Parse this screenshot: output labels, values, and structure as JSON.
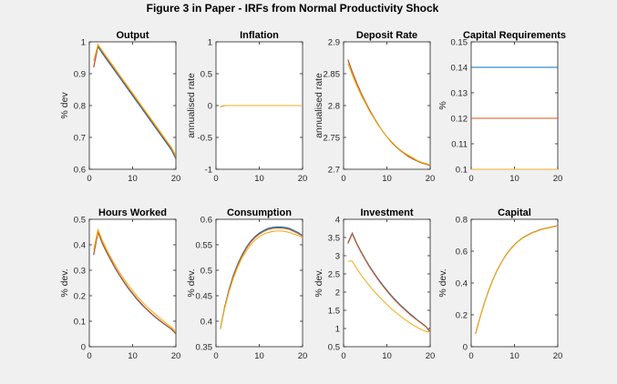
{
  "figure": {
    "title": "Figure 3 in Paper - IRFs from Normal Productivity Shock"
  },
  "colors": {
    "series1": "#0072bd",
    "series2": "#d95319",
    "series3": "#edb120",
    "axis": "#262626"
  },
  "chart_data": [
    {
      "type": "line",
      "title": "Output",
      "ylabel": "% dev",
      "xlim": [
        0,
        20
      ],
      "xticks": [
        0,
        10,
        20
      ],
      "ylim": [
        0.6,
        1.0
      ],
      "yticks": [
        0.6,
        0.7,
        0.8,
        0.9,
        1.0
      ],
      "yticklabels": [
        "0.6",
        "0.7",
        "0.8",
        "0.9",
        "1"
      ],
      "x": [
        1,
        2,
        3,
        4,
        5,
        6,
        7,
        8,
        9,
        10,
        11,
        12,
        13,
        14,
        15,
        16,
        17,
        18,
        19,
        20
      ],
      "series": [
        {
          "values": [
            0.92,
            0.985,
            0.964,
            0.945,
            0.926,
            0.907,
            0.888,
            0.869,
            0.85,
            0.831,
            0.812,
            0.793,
            0.774,
            0.755,
            0.736,
            0.717,
            0.698,
            0.679,
            0.66,
            0.632
          ]
        },
        {
          "values": [
            0.92,
            0.99,
            0.968,
            0.949,
            0.93,
            0.911,
            0.892,
            0.873,
            0.854,
            0.835,
            0.816,
            0.797,
            0.778,
            0.759,
            0.74,
            0.721,
            0.702,
            0.683,
            0.664,
            0.636
          ]
        },
        {
          "values": [
            0.94,
            0.992,
            0.972,
            0.953,
            0.934,
            0.915,
            0.896,
            0.877,
            0.858,
            0.839,
            0.82,
            0.801,
            0.782,
            0.763,
            0.744,
            0.725,
            0.706,
            0.687,
            0.668,
            0.642
          ]
        }
      ]
    },
    {
      "type": "line",
      "title": "Inflation",
      "ylabel": "annualised rate",
      "xlim": [
        0,
        20
      ],
      "xticks": [
        0,
        10,
        20
      ],
      "ylim": [
        -1,
        1
      ],
      "yticks": [
        -1,
        -0.5,
        0,
        0.5,
        1
      ],
      "yticklabels": [
        "-1",
        "-0.5",
        "0",
        "0.5",
        "1"
      ],
      "x": [
        1,
        2,
        3,
        4,
        5,
        6,
        7,
        8,
        9,
        10,
        11,
        12,
        13,
        14,
        15,
        16,
        17,
        18,
        19,
        20
      ],
      "series": [
        {
          "values": [
            -0.02,
            0,
            0,
            0,
            0,
            0,
            0,
            0,
            0,
            0,
            0,
            0,
            0,
            0,
            0,
            0,
            0,
            0,
            0,
            0
          ]
        },
        {
          "values": [
            -0.02,
            0,
            0,
            0,
            0,
            0,
            0,
            0,
            0,
            0,
            0,
            0,
            0,
            0,
            0,
            0,
            0,
            0,
            0,
            0
          ]
        },
        {
          "values": [
            -0.02,
            0,
            0,
            0,
            0,
            0,
            0,
            0,
            0,
            0,
            0,
            0,
            0,
            0,
            0,
            0,
            0,
            0,
            0,
            0
          ]
        }
      ]
    },
    {
      "type": "line",
      "title": "Deposit Rate",
      "ylabel": "annualised rate",
      "xlim": [
        0,
        20
      ],
      "xticks": [
        0,
        10,
        20
      ],
      "ylim": [
        2.7,
        2.9
      ],
      "yticks": [
        2.7,
        2.75,
        2.8,
        2.85,
        2.9
      ],
      "yticklabels": [
        "2.7",
        "2.75",
        "2.8",
        "2.85",
        "2.9"
      ],
      "x": [
        1,
        2,
        3,
        4,
        5,
        6,
        7,
        8,
        9,
        10,
        11,
        12,
        13,
        14,
        15,
        16,
        17,
        18,
        19,
        20
      ],
      "series": [
        {
          "values": [
            2.872,
            2.853,
            2.836,
            2.82,
            2.806,
            2.793,
            2.781,
            2.77,
            2.76,
            2.751,
            2.743,
            2.736,
            2.73,
            2.725,
            2.72,
            2.716,
            2.713,
            2.71,
            2.708,
            2.706
          ]
        },
        {
          "values": [
            2.872,
            2.853,
            2.836,
            2.82,
            2.806,
            2.793,
            2.781,
            2.77,
            2.76,
            2.751,
            2.743,
            2.736,
            2.73,
            2.725,
            2.72,
            2.716,
            2.713,
            2.71,
            2.708,
            2.706
          ]
        },
        {
          "values": [
            2.866,
            2.848,
            2.832,
            2.817,
            2.804,
            2.791,
            2.78,
            2.769,
            2.76,
            2.751,
            2.744,
            2.737,
            2.731,
            2.726,
            2.722,
            2.718,
            2.714,
            2.711,
            2.709,
            2.707
          ]
        }
      ]
    },
    {
      "type": "line",
      "title": "Capital Requirements",
      "ylabel": "%",
      "xlim": [
        0,
        20
      ],
      "xticks": [
        0,
        10,
        20
      ],
      "ylim": [
        0.1,
        0.15
      ],
      "yticks": [
        0.1,
        0.11,
        0.12,
        0.13,
        0.14,
        0.15
      ],
      "yticklabels": [
        "0.1",
        "0.11",
        "0.12",
        "0.13",
        "0.14",
        "0.15"
      ],
      "x": [
        0,
        20
      ],
      "series": [
        {
          "values": [
            0.14,
            0.14
          ]
        },
        {
          "values": [
            0.12,
            0.12
          ]
        },
        {
          "values": [
            0.1,
            0.1
          ]
        }
      ]
    },
    {
      "type": "line",
      "title": "Hours Worked",
      "ylabel": "% dev.",
      "xlim": [
        0,
        20
      ],
      "xticks": [
        0,
        10,
        20
      ],
      "ylim": [
        0,
        0.5
      ],
      "yticks": [
        0,
        0.1,
        0.2,
        0.3,
        0.4,
        0.5
      ],
      "yticklabels": [
        "0",
        "0.1",
        "0.2",
        "0.3",
        "0.4",
        "0.5"
      ],
      "x": [
        1,
        2,
        3,
        4,
        5,
        6,
        7,
        8,
        9,
        10,
        11,
        12,
        13,
        14,
        15,
        16,
        17,
        18,
        19,
        20
      ],
      "series": [
        {
          "values": [
            0.36,
            0.45,
            0.405,
            0.37,
            0.338,
            0.307,
            0.279,
            0.253,
            0.229,
            0.207,
            0.186,
            0.167,
            0.15,
            0.134,
            0.119,
            0.105,
            0.092,
            0.08,
            0.068,
            0.05
          ]
        },
        {
          "values": [
            0.36,
            0.45,
            0.408,
            0.373,
            0.341,
            0.31,
            0.282,
            0.256,
            0.232,
            0.21,
            0.189,
            0.17,
            0.152,
            0.136,
            0.121,
            0.107,
            0.094,
            0.082,
            0.07,
            0.052
          ]
        },
        {
          "values": [
            0.38,
            0.46,
            0.418,
            0.382,
            0.35,
            0.32,
            0.292,
            0.266,
            0.242,
            0.22,
            0.199,
            0.18,
            0.162,
            0.146,
            0.131,
            0.116,
            0.102,
            0.089,
            0.076,
            0.058
          ]
        }
      ]
    },
    {
      "type": "line",
      "title": "Consumption",
      "ylabel": "% dev.",
      "xlim": [
        0,
        20
      ],
      "xticks": [
        0,
        10,
        20
      ],
      "ylim": [
        0.35,
        0.6
      ],
      "yticks": [
        0.35,
        0.4,
        0.45,
        0.5,
        0.55,
        0.6
      ],
      "yticklabels": [
        "0.35",
        "0.4",
        "0.45",
        "0.5",
        "0.55",
        "0.6"
      ],
      "x": [
        1,
        2,
        3,
        4,
        5,
        6,
        7,
        8,
        9,
        10,
        11,
        12,
        13,
        14,
        15,
        16,
        17,
        18,
        19,
        20
      ],
      "series": [
        {
          "values": [
            0.385,
            0.428,
            0.462,
            0.49,
            0.512,
            0.53,
            0.545,
            0.557,
            0.566,
            0.573,
            0.578,
            0.582,
            0.584,
            0.585,
            0.585,
            0.584,
            0.582,
            0.578,
            0.574,
            0.568
          ]
        },
        {
          "values": [
            0.385,
            0.427,
            0.46,
            0.488,
            0.51,
            0.528,
            0.543,
            0.555,
            0.564,
            0.571,
            0.576,
            0.58,
            0.582,
            0.583,
            0.583,
            0.582,
            0.58,
            0.576,
            0.572,
            0.567
          ]
        },
        {
          "values": [
            0.385,
            0.425,
            0.457,
            0.484,
            0.506,
            0.524,
            0.538,
            0.55,
            0.559,
            0.566,
            0.571,
            0.574,
            0.576,
            0.577,
            0.577,
            0.576,
            0.574,
            0.571,
            0.568,
            0.564
          ]
        }
      ]
    },
    {
      "type": "line",
      "title": "Investment",
      "ylabel": "% dev.",
      "xlim": [
        0,
        20
      ],
      "xticks": [
        0,
        10,
        20
      ],
      "ylim": [
        0.5,
        4
      ],
      "yticks": [
        0.5,
        1,
        1.5,
        2,
        2.5,
        3,
        3.5,
        4
      ],
      "yticklabels": [
        "0.5",
        "1",
        "1.5",
        "2",
        "2.5",
        "3",
        "3.5",
        "4"
      ],
      "x": [
        1,
        2,
        3,
        4,
        5,
        6,
        7,
        8,
        9,
        10,
        11,
        12,
        13,
        14,
        15,
        16,
        17,
        18,
        19,
        20
      ],
      "series": [
        {
          "values": [
            3.35,
            3.62,
            3.35,
            3.12,
            2.91,
            2.71,
            2.53,
            2.36,
            2.2,
            2.05,
            1.91,
            1.78,
            1.66,
            1.55,
            1.44,
            1.34,
            1.24,
            1.15,
            1.06,
            0.9
          ]
        },
        {
          "values": [
            3.33,
            3.6,
            3.33,
            3.1,
            2.89,
            2.69,
            2.51,
            2.34,
            2.18,
            2.03,
            1.89,
            1.76,
            1.64,
            1.53,
            1.42,
            1.32,
            1.23,
            1.14,
            1.05,
            0.9
          ]
        },
        {
          "values": [
            2.85,
            2.85,
            2.65,
            2.48,
            2.32,
            2.17,
            2.03,
            1.9,
            1.78,
            1.66,
            1.55,
            1.45,
            1.35,
            1.26,
            1.18,
            1.1,
            1.03,
            0.97,
            0.92,
            0.9
          ]
        }
      ]
    },
    {
      "type": "line",
      "title": "Capital",
      "ylabel": "% dev.",
      "xlim": [
        0,
        20
      ],
      "xticks": [
        0,
        10,
        20
      ],
      "ylim": [
        0,
        0.8
      ],
      "yticks": [
        0,
        0.2,
        0.4,
        0.6,
        0.8
      ],
      "yticklabels": [
        "0",
        "0.2",
        "0.4",
        "0.6",
        "0.8"
      ],
      "x": [
        1,
        2,
        3,
        4,
        5,
        6,
        7,
        8,
        9,
        10,
        11,
        12,
        13,
        14,
        15,
        16,
        17,
        18,
        19,
        20
      ],
      "series": [
        {
          "values": [
            0.08,
            0.18,
            0.27,
            0.35,
            0.42,
            0.48,
            0.53,
            0.575,
            0.61,
            0.64,
            0.665,
            0.685,
            0.7,
            0.715,
            0.725,
            0.735,
            0.742,
            0.748,
            0.754,
            0.76
          ]
        },
        {
          "values": [
            0.08,
            0.18,
            0.27,
            0.35,
            0.42,
            0.48,
            0.53,
            0.575,
            0.61,
            0.64,
            0.665,
            0.685,
            0.7,
            0.715,
            0.725,
            0.735,
            0.742,
            0.748,
            0.754,
            0.76
          ]
        },
        {
          "values": [
            0.08,
            0.18,
            0.27,
            0.35,
            0.42,
            0.48,
            0.53,
            0.573,
            0.608,
            0.638,
            0.663,
            0.683,
            0.698,
            0.713,
            0.723,
            0.733,
            0.74,
            0.746,
            0.752,
            0.758
          ]
        }
      ]
    }
  ]
}
